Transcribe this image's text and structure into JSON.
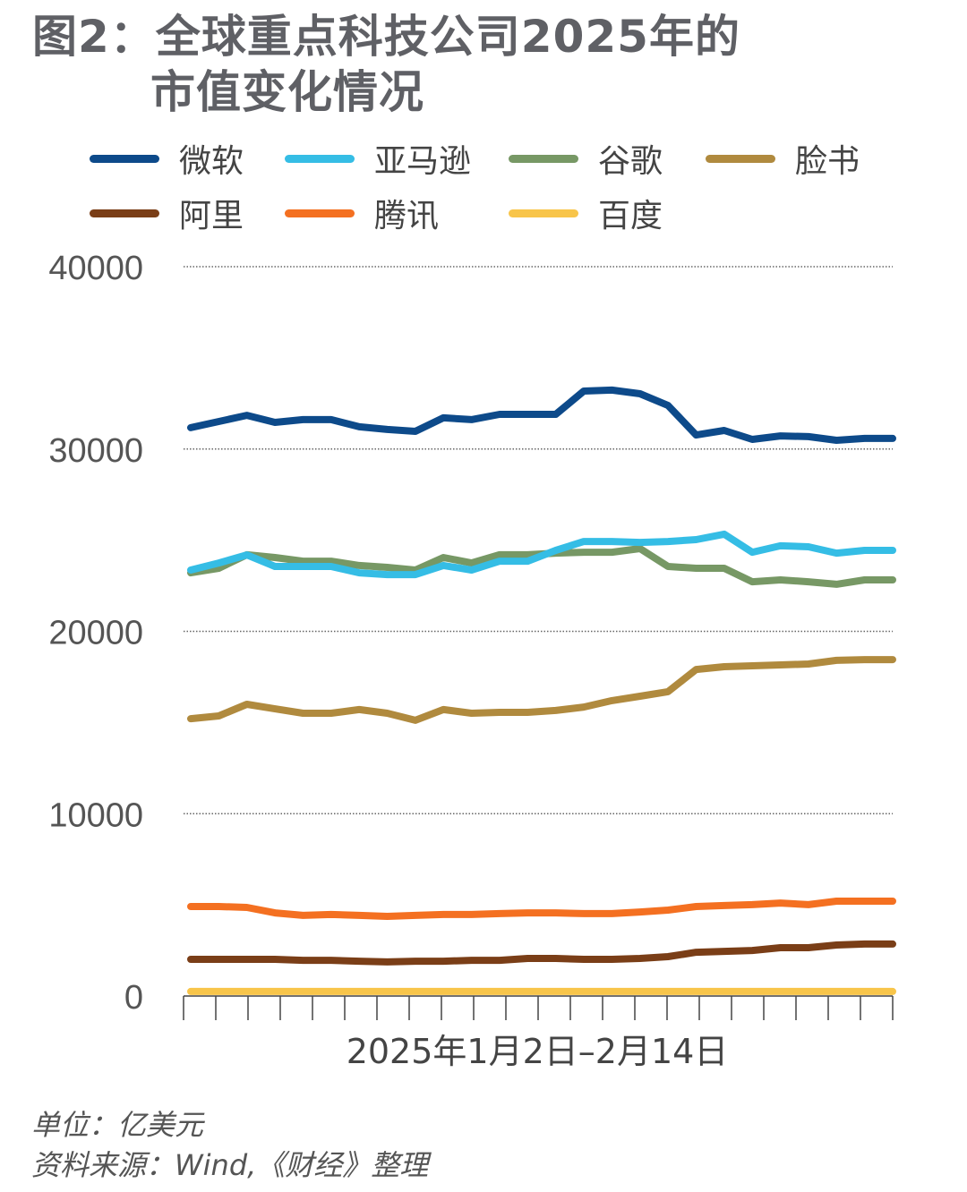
{
  "title": {
    "line1": "图2：全球重点科技公司2025年的",
    "line2": "市值变化情况"
  },
  "footer": {
    "unit": "单位：亿美元",
    "source": "资料来源：Wind,《财经》整理"
  },
  "chart_data": {
    "type": "line",
    "title": "图2：全球重点科技公司2025年的市值变化情况",
    "xlabel": "2025年1月2日–2月14日",
    "ylabel": "",
    "unit": "亿美元",
    "ylim": [
      0,
      40000
    ],
    "yticks": [
      "0",
      "10000",
      "20000",
      "30000",
      "40000"
    ],
    "grid": "horizontal dotted",
    "legend": "top",
    "series": [
      {
        "name": "微软",
        "color": "#0d4a8a",
        "values": [
          31170,
          31510,
          31850,
          31460,
          31610,
          31610,
          31220,
          31070,
          30970,
          31710,
          31610,
          31900,
          31900,
          31900,
          33180,
          33230,
          33030,
          32390,
          30770,
          31020,
          30530,
          30720,
          30680,
          30480,
          30580,
          30580
        ]
      },
      {
        "name": "亚马逊",
        "color": "#35bde5",
        "values": [
          23360,
          23750,
          24190,
          23560,
          23560,
          23560,
          23210,
          23110,
          23110,
          23610,
          23360,
          23850,
          23850,
          24440,
          24930,
          24930,
          24880,
          24930,
          25030,
          25330,
          24340,
          24690,
          24640,
          24290,
          24440,
          24440
        ]
      },
      {
        "name": "谷歌",
        "color": "#779865",
        "values": [
          23210,
          23460,
          24200,
          24050,
          23850,
          23850,
          23610,
          23510,
          23360,
          24050,
          23750,
          24200,
          24200,
          24290,
          24340,
          24340,
          24540,
          23560,
          23460,
          23460,
          22720,
          22820,
          22720,
          22580,
          22820,
          22820
        ]
      },
      {
        "name": "脸书",
        "color": "#b08a3e",
        "values": [
          15210,
          15360,
          16000,
          15750,
          15510,
          15510,
          15710,
          15510,
          15120,
          15710,
          15510,
          15560,
          15560,
          15660,
          15850,
          16200,
          16440,
          16690,
          17910,
          18060,
          18110,
          18160,
          18210,
          18410,
          18450,
          18450
        ]
      },
      {
        "name": "阿里",
        "color": "#7a3e17",
        "values": [
          2010,
          2010,
          2010,
          2010,
          1960,
          1960,
          1910,
          1870,
          1910,
          1910,
          1960,
          1960,
          2060,
          2060,
          2010,
          2010,
          2060,
          2160,
          2400,
          2450,
          2500,
          2650,
          2650,
          2800,
          2850,
          2850
        ]
      },
      {
        "name": "腾讯",
        "color": "#f47021",
        "values": [
          4910,
          4910,
          4860,
          4560,
          4420,
          4470,
          4420,
          4370,
          4420,
          4470,
          4470,
          4520,
          4560,
          4560,
          4520,
          4520,
          4610,
          4710,
          4910,
          4960,
          5010,
          5100,
          5010,
          5200,
          5200,
          5200
        ]
      },
      {
        "name": "百度",
        "color": "#f8c54a",
        "values": [
          250,
          250,
          250,
          250,
          250,
          250,
          250,
          250,
          250,
          250,
          250,
          250,
          250,
          250,
          250,
          250,
          250,
          250,
          250,
          250,
          250,
          250,
          250,
          250,
          250,
          250
        ]
      }
    ]
  }
}
